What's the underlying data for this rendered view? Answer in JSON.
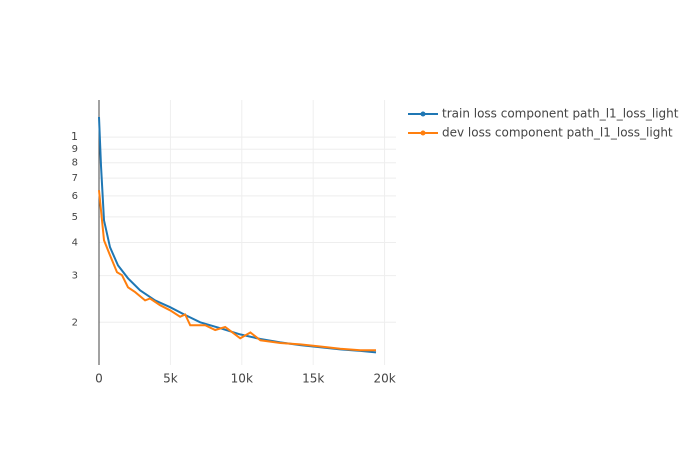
{
  "chart_data": {
    "type": "line",
    "x_scale": "linear",
    "y_scale": "log",
    "grid": true,
    "legend_position": "right",
    "xlim": [
      0,
      20800
    ],
    "ylim": [
      0.138,
      1.38
    ],
    "xticks": [
      0,
      {
        "value": 5000,
        "label": "5k"
      },
      {
        "value": 10000,
        "label": "10k"
      },
      {
        "value": 15000,
        "label": "15k"
      },
      {
        "value": 20000,
        "label": "20k"
      }
    ],
    "yticks": [
      {
        "value": 0.2,
        "label": "2"
      },
      {
        "value": 0.3,
        "label": "3"
      },
      {
        "value": 0.4,
        "label": "4"
      },
      {
        "value": 0.5,
        "label": "5"
      },
      {
        "value": 0.6,
        "label": "6"
      },
      {
        "value": 0.7,
        "label": "7"
      },
      {
        "value": 0.8,
        "label": "8"
      },
      {
        "value": 0.9,
        "label": "9"
      },
      1
    ],
    "series": [
      {
        "name": "train loss component path_l1_loss_light",
        "color": "#1f77b4",
        "x": [
          0,
          140,
          350,
          770,
          1330,
          2030,
          2880,
          3930,
          4980,
          6040,
          7090,
          8490,
          9890,
          11300,
          12700,
          14100,
          15500,
          16900,
          18300,
          19400
        ],
        "values": [
          1.19,
          0.78,
          0.485,
          0.384,
          0.328,
          0.293,
          0.264,
          0.242,
          0.228,
          0.213,
          0.2,
          0.19,
          0.18,
          0.173,
          0.168,
          0.164,
          0.161,
          0.158,
          0.156,
          0.154
        ]
      },
      {
        "name": "dev loss component path_l1_loss_light",
        "color": "#ff7f0e",
        "x": [
          0,
          350,
          770,
          1260,
          1610,
          2030,
          2530,
          3230,
          3580,
          4280,
          4980,
          5680,
          6040,
          6390,
          7440,
          8140,
          8840,
          9890,
          10600,
          11300,
          12700,
          14100,
          15500,
          16900,
          18300,
          19400
        ],
        "values": [
          0.63,
          0.408,
          0.358,
          0.309,
          0.301,
          0.271,
          0.26,
          0.242,
          0.246,
          0.232,
          0.222,
          0.21,
          0.214,
          0.195,
          0.195,
          0.187,
          0.192,
          0.174,
          0.183,
          0.171,
          0.167,
          0.165,
          0.162,
          0.159,
          0.157,
          0.157
        ]
      }
    ]
  }
}
